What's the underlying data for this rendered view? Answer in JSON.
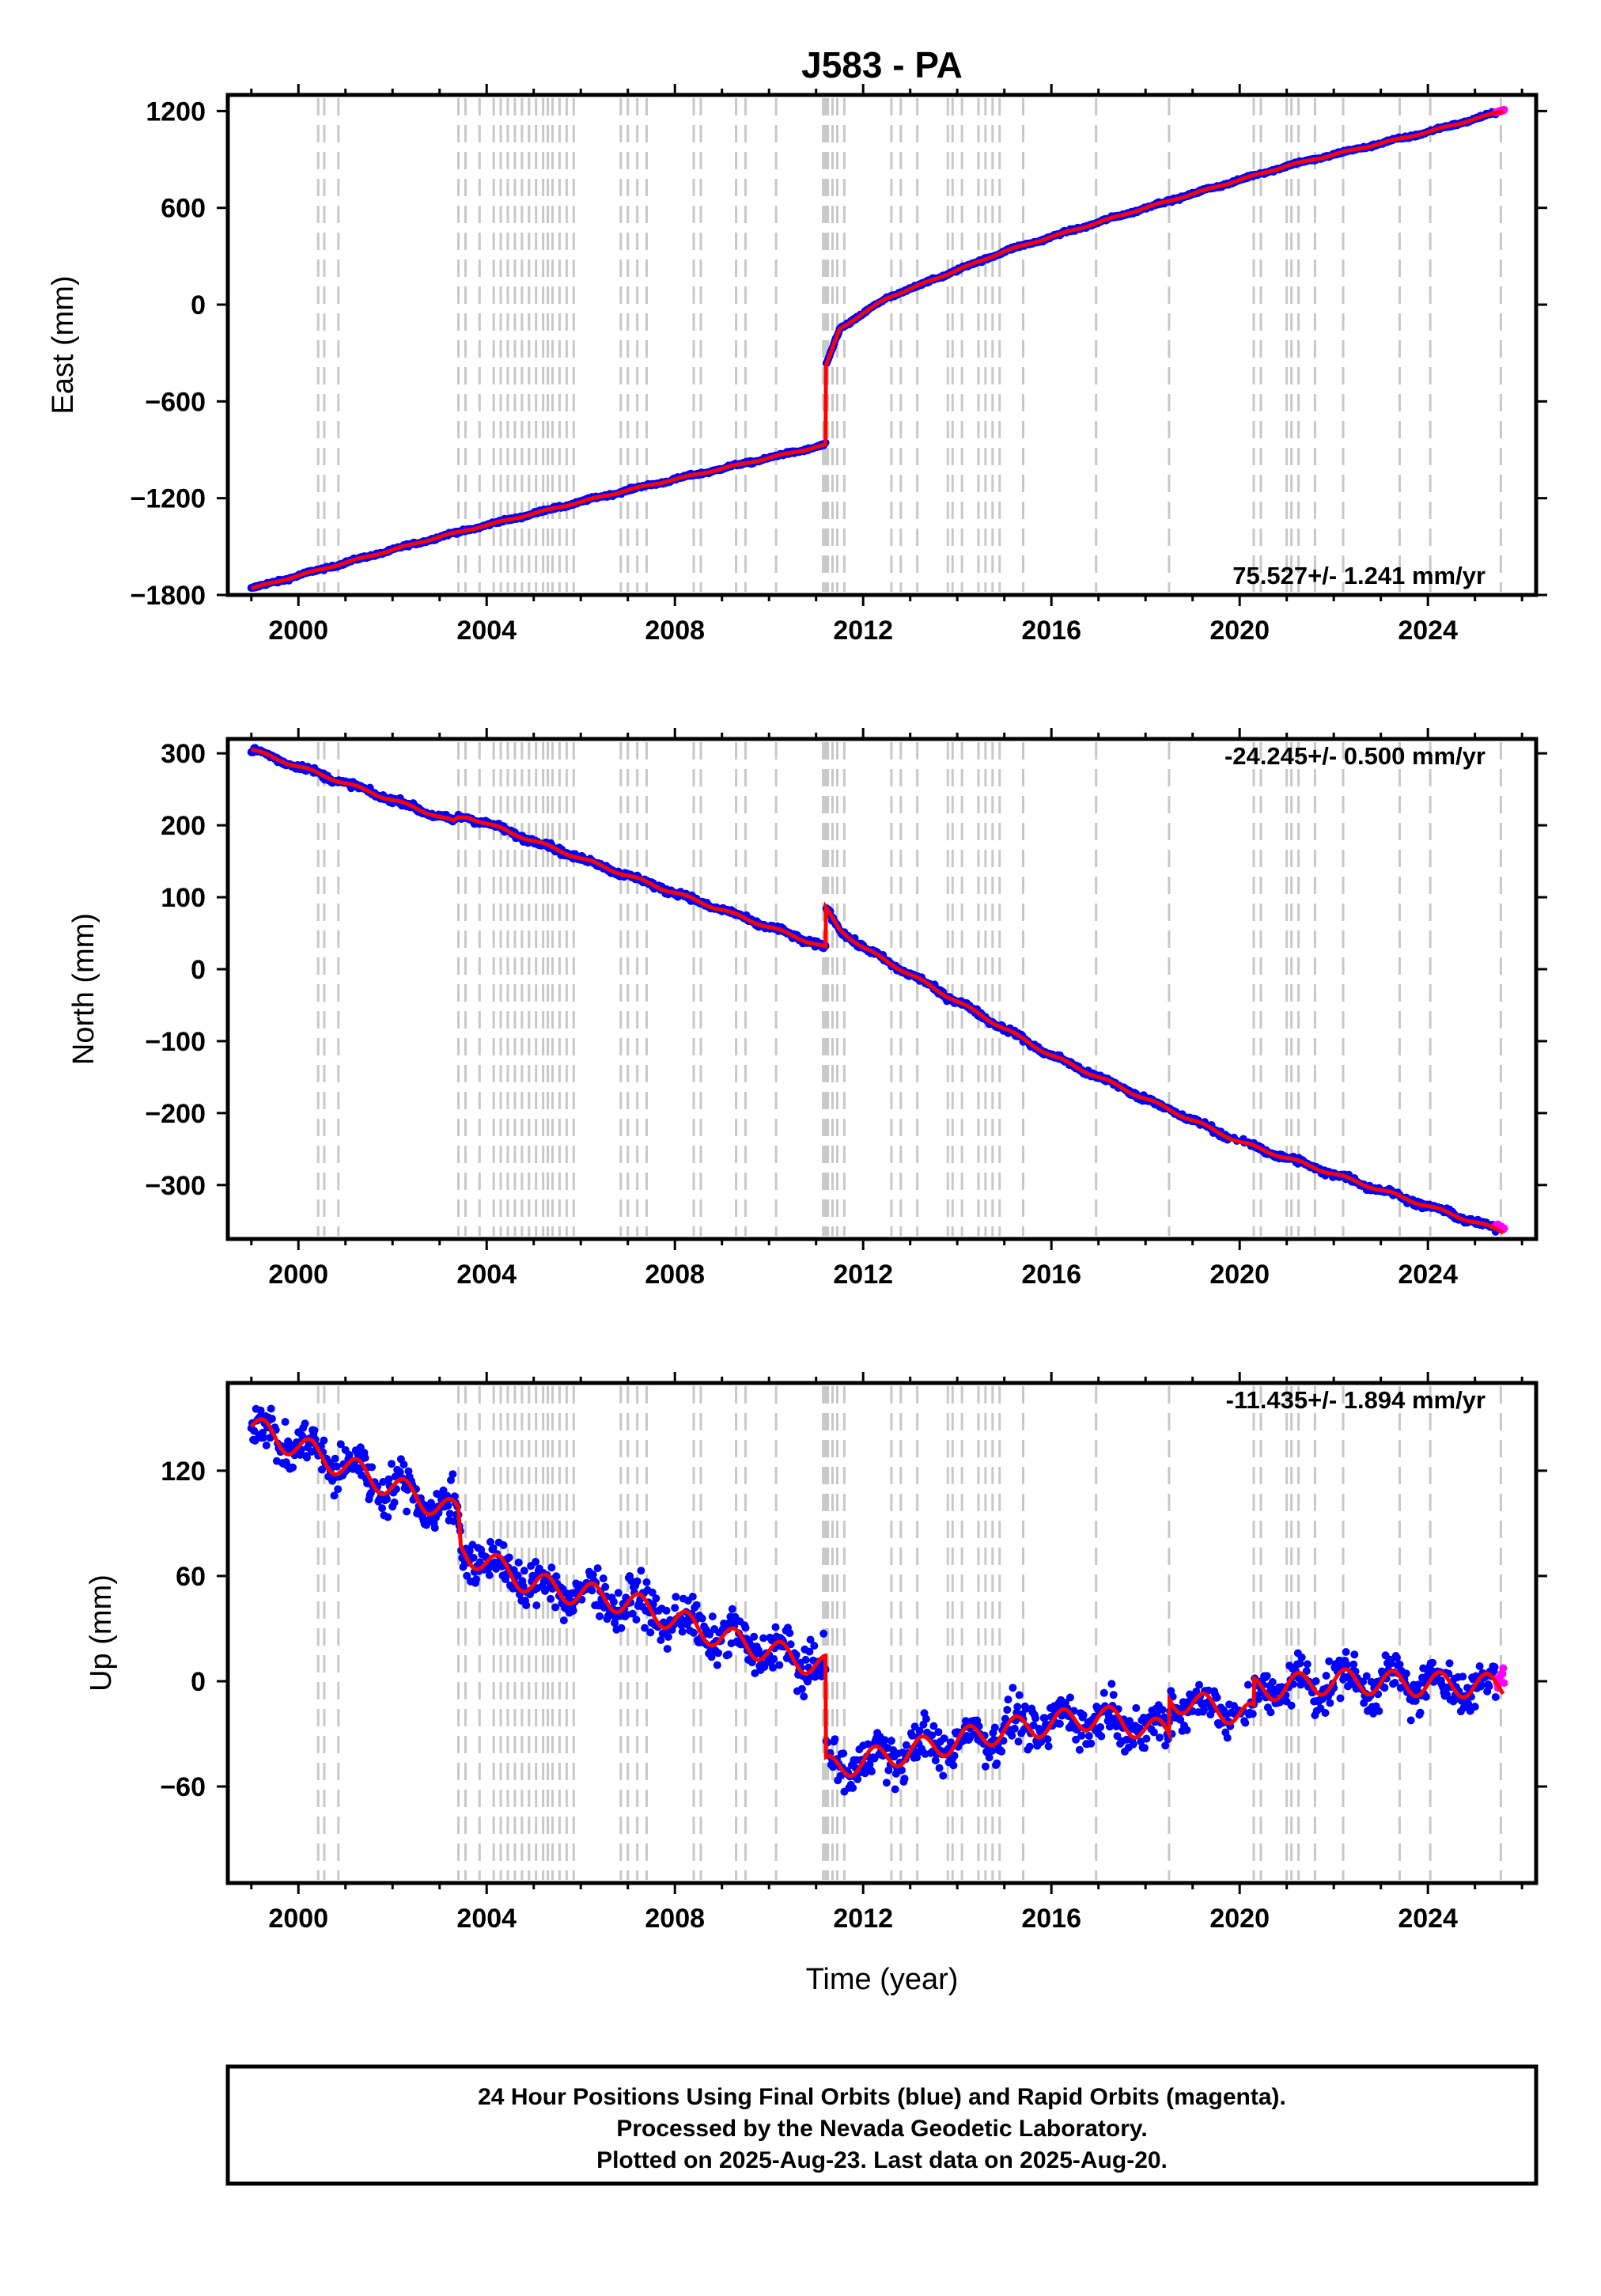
{
  "title": "J583 - PA",
  "x_label": "Time (year)",
  "colors": {
    "final": "#0000ff",
    "rapid": "#ff00ff",
    "model": "#ff0000",
    "offsets": "#c8c8c8"
  },
  "offset_years": [
    2000.42,
    2000.55,
    2000.85,
    2003.4,
    2003.55,
    2003.85,
    2004.15,
    2004.3,
    2004.45,
    2004.6,
    2004.75,
    2004.9,
    2005.05,
    2005.2,
    2005.3,
    2005.4,
    2005.55,
    2005.7,
    2005.85,
    2006.85,
    2007.0,
    2007.2,
    2007.4,
    2008.4,
    2008.55,
    2009.3,
    2009.5,
    2010.15,
    2011.15,
    2011.2,
    2011.25,
    2011.35,
    2011.45,
    2011.6,
    2012.6,
    2012.8,
    2013.15,
    2013.8,
    2013.9,
    2014.1,
    2014.45,
    2014.6,
    2014.75,
    2014.9,
    2015.4,
    2016.95,
    2018.5,
    2020.3,
    2020.45,
    2021.0,
    2021.1,
    2021.25,
    2021.6,
    2022.2,
    2023.4,
    2024.05,
    2025.55
  ],
  "footer": {
    "line1": "24 Hour Positions Using Final Orbits (blue) and Rapid Orbits (magenta).",
    "line2": "Processed by the Nevada Geodetic Laboratory.",
    "line3": "Plotted on 2025-Aug-23. Last data on 2025-Aug-20."
  },
  "chart_data": [
    {
      "type": "scatter",
      "title": "J583 - PA",
      "ylabel": "East (mm)",
      "xlabel": "",
      "rate_label": "75.527+/- 1.241 mm/yr",
      "xlim": [
        1998.5,
        2026.3
      ],
      "ylim": [
        -1800,
        1300
      ],
      "x_ticks": [
        2000,
        2004,
        2008,
        2012,
        2016,
        2020,
        2024
      ],
      "y_ticks": [
        1200,
        600,
        0,
        -600,
        -1200,
        -1800
      ],
      "y_tick_labels": [
        "1200",
        "600",
        "0",
        "−600",
        "−1200",
        "−1800"
      ],
      "series": [
        {
          "role": "model",
          "x": [
            1999.0,
            2003.0,
            2007.0,
            2011.2,
            2011.2,
            2011.5,
            2012.5,
            2015.0,
            2018.0,
            2021.0,
            2024.0,
            2025.6
          ],
          "y": [
            -1760,
            -1440,
            -1150,
            -870,
            -390,
            -150,
            40,
            330,
            600,
            860,
            1070,
            1200
          ]
        },
        {
          "role": "rapid",
          "x": [
            2025.45,
            2025.62
          ],
          "y": [
            1195,
            1205
          ]
        }
      ]
    },
    {
      "type": "scatter",
      "ylabel": "North (mm)",
      "xlabel": "",
      "rate_label": "-24.245+/- 0.500 mm/yr",
      "xlim": [
        1998.5,
        2026.3
      ],
      "ylim": [
        -375,
        320
      ],
      "x_ticks": [
        2000,
        2004,
        2008,
        2012,
        2016,
        2020,
        2024
      ],
      "y_ticks": [
        300,
        200,
        100,
        0,
        -100,
        -200,
        -300
      ],
      "y_tick_labels": [
        "300",
        "200",
        "100",
        "0",
        "−100",
        "−200",
        "−300"
      ],
      "series": [
        {
          "role": "model",
          "x": [
            1999.0,
            2003.3,
            2003.4,
            2003.6,
            2007.0,
            2011.2,
            2011.2,
            2011.5,
            2012.0,
            2016.0,
            2020.0,
            2025.6
          ],
          "y": [
            305,
            205,
            210,
            212,
            130,
            30,
            85,
            55,
            30,
            -120,
            -240,
            -365
          ]
        },
        {
          "role": "rapid",
          "x": [
            2025.45,
            2025.62
          ],
          "y": [
            -355,
            -360
          ]
        }
      ]
    },
    {
      "type": "scatter",
      "ylabel": "Up (mm)",
      "xlabel": "Time (year)",
      "rate_label": "-11.435+/- 1.894 mm/yr",
      "xlim": [
        1998.5,
        2026.3
      ],
      "ylim": [
        -115,
        170
      ],
      "x_ticks": [
        2000,
        2004,
        2008,
        2012,
        2016,
        2020,
        2024
      ],
      "y_ticks": [
        120,
        60,
        0,
        -60
      ],
      "y_tick_labels": [
        "120",
        "60",
        "0",
        "−60"
      ],
      "series": [
        {
          "role": "model",
          "x": [
            1999.0,
            2003.4,
            2003.45,
            2005.0,
            2007.0,
            2009.0,
            2011.2,
            2011.2,
            2013.0,
            2015.0,
            2017.0,
            2018.5,
            2018.5,
            2020.3,
            2020.3,
            2022.0,
            2025.6
          ],
          "y": [
            145,
            95,
            75,
            55,
            45,
            25,
            8,
            -50,
            -40,
            -28,
            -20,
            -30,
            -10,
            -20,
            -5,
            0,
            -3
          ]
        },
        {
          "role": "rapid",
          "x": [
            2025.45,
            2025.62
          ],
          "y": [
            0,
            5
          ]
        }
      ]
    }
  ]
}
